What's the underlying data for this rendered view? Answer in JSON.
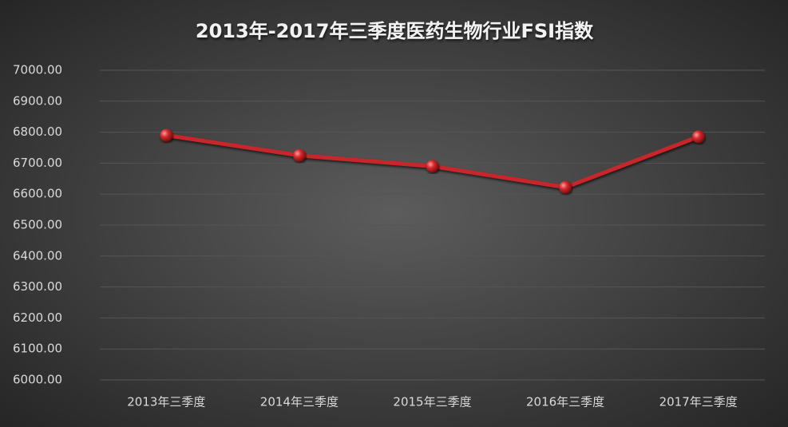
{
  "chart_data": {
    "type": "line",
    "title": "2013年-2017年三季度医药生物行业FSI指数",
    "categories": [
      "2013年三季度",
      "2014年三季度",
      "2015年三季度",
      "2016年三季度",
      "2017年三季度"
    ],
    "series": [
      {
        "color": "#c8282c",
        "values": [
          6790,
          6725,
          6690,
          6622,
          6785
        ]
      }
    ],
    "ylim": [
      6000,
      7000
    ],
    "yticks": [
      {
        "value": 6000,
        "label": "6000.00"
      },
      {
        "value": 6100,
        "label": "6100.00"
      },
      {
        "value": 6200,
        "label": "6200.00"
      },
      {
        "value": 6300,
        "label": "6300.00"
      },
      {
        "value": 6400,
        "label": "6400.00"
      },
      {
        "value": 6500,
        "label": "6500.00"
      },
      {
        "value": 6600,
        "label": "6600.00"
      },
      {
        "value": 6700,
        "label": "6700.00"
      },
      {
        "value": 6800,
        "label": "6800.00"
      },
      {
        "value": 6900,
        "label": "6900.00"
      },
      {
        "value": 7000,
        "label": "7000.00"
      }
    ],
    "grid": true
  }
}
